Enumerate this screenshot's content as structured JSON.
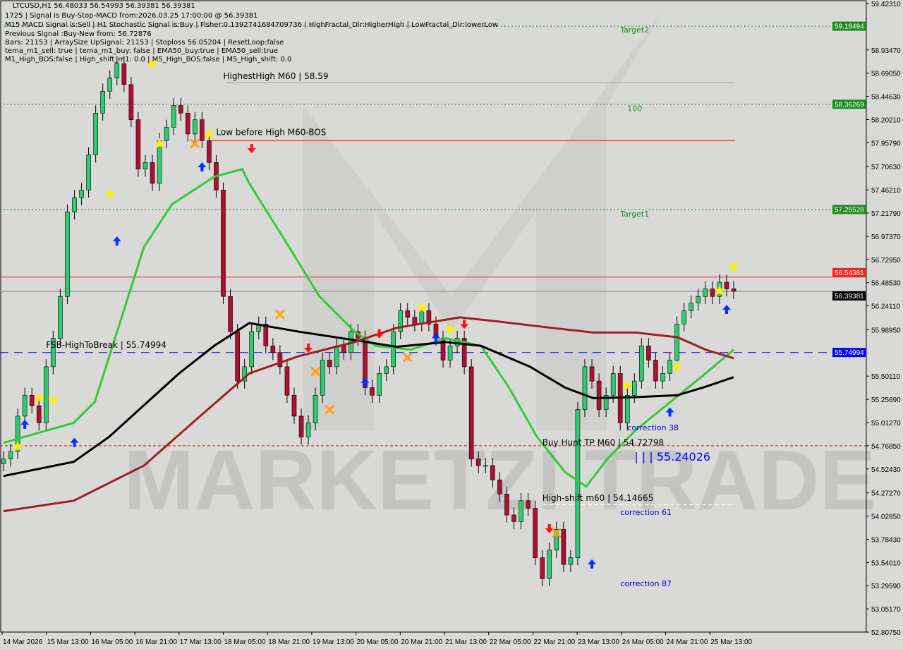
{
  "header": {
    "title": "LTCUSD,H1  56.48033 56.54993 56.39381 56.39381",
    "lines": [
      "1725 | Signal is Buy-Stop-MACD from:2026.03.25 17:00:00 @ 56.39381",
      "M15 MACD Signal is:Sell | H1 Stochastic Signal is:Buy | Fisher:0.1392741684709736 | HighFractal_Dir:HigherHigh | LowFractal_Dir:lowerLow",
      "Previous Signal :Buy-New from: 56.72876",
      "Bars: 21153 | ArraySize UpSignal: 21153 | Stoploss 56.05204 | ResetLoop:false",
      "tema_m1_sell: true | tema_m1_buy: false | EMA50_buy:true | EMA50_sell:true",
      "M1_High_BOS:false | High_shift_m1: 0.0 | M5_High_BOS:false | M5_High_shift: 0.0"
    ]
  },
  "watermark": "MARKETZI TRADE",
  "colors": {
    "bull": "#2ecc71",
    "bear": "#b01030",
    "ema_fast": "#33cc33",
    "ma_mid": "#000000",
    "ma_slow": "#a02020",
    "target": "#1e8c1e",
    "ask": "#ff2020",
    "bid": "#000000",
    "fsb": "#0000ff",
    "bg": "#d9d9d7"
  },
  "chart_data": {
    "type": "candlestick",
    "symbol": "LTCUSD",
    "timeframe": "H1",
    "ylim": [
      52.8075,
      59.4231
    ],
    "y_ticks": [
      "59.42310",
      "58.93470",
      "58.69050",
      "58.44630",
      "58.20210",
      "57.95790",
      "57.70630",
      "57.46210",
      "57.21790",
      "56.97370",
      "56.72950",
      "56.48530",
      "56.24110",
      "55.98950",
      "55.50110",
      "55.25690",
      "55.01270",
      "54.76850",
      "54.52430",
      "54.27270",
      "54.02850",
      "53.78430",
      "53.54010",
      "53.29590",
      "53.05170",
      "52.80750"
    ],
    "x_ticks": [
      "14 Mar 2026",
      "15 Mar 13:00",
      "16 Mar 05:00",
      "16 Mar 21:00",
      "17 Mar 13:00",
      "18 Mar 05:00",
      "18 Mar 21:00",
      "19 Mar 13:00",
      "20 Mar 05:00",
      "20 Mar 21:00",
      "21 Mar 13:00",
      "22 Mar 05:00",
      "22 Mar 21:00",
      "23 Mar 13:00",
      "24 Mar 05:00",
      "24 Mar 21:00",
      "25 Mar 13:00"
    ],
    "closes": [
      54.63,
      54.71,
      55.08,
      55.3,
      55.19,
      55.01,
      55.6,
      55.9,
      56.34,
      57.23,
      57.38,
      57.46,
      57.83,
      58.27,
      58.5,
      58.64,
      58.79,
      58.57,
      58.2,
      57.68,
      57.75,
      57.53,
      57.98,
      58.12,
      58.35,
      58.27,
      58.05,
      58.2,
      57.98,
      57.75,
      57.46,
      56.34,
      55.97,
      55.45,
      55.6,
      55.97,
      56.05,
      55.82,
      55.75,
      55.6,
      55.3,
      55.08,
      54.86,
      55.01,
      55.3,
      55.67,
      55.6,
      55.82,
      55.75,
      55.97,
      55.9,
      55.38,
      55.3,
      55.53,
      55.6,
      55.97,
      56.19,
      56.12,
      56.05,
      56.19,
      56.05,
      55.9,
      55.67,
      55.82,
      55.9,
      55.6,
      54.63,
      54.56,
      54.56,
      54.41,
      54.26,
      54.04,
      53.97,
      54.19,
      54.11,
      53.59,
      53.37,
      53.67,
      53.89,
      53.52,
      53.59,
      55.15,
      55.6,
      55.45,
      55.15,
      55.3,
      55.53,
      55.01,
      55.3,
      55.45,
      55.82,
      55.67,
      55.45,
      55.53,
      55.67,
      56.05,
      56.19,
      56.27,
      56.34,
      56.42,
      56.34,
      56.49,
      56.42,
      56.39381
    ],
    "series": [
      {
        "key": "ema_fast",
        "points": [
          [
            0,
            54.8
          ],
          [
            10,
            55.01
          ],
          [
            13,
            55.23
          ],
          [
            20,
            56.86
          ],
          [
            24,
            57.31
          ],
          [
            30,
            57.6
          ],
          [
            34,
            57.68
          ],
          [
            35,
            57.53
          ],
          [
            40,
            56.94
          ],
          [
            45,
            56.34
          ],
          [
            50,
            55.97
          ],
          [
            53,
            55.82
          ],
          [
            58,
            55.78
          ],
          [
            63,
            55.9
          ],
          [
            68,
            55.82
          ],
          [
            72,
            55.38
          ],
          [
            76,
            54.86
          ],
          [
            80,
            54.49
          ],
          [
            83,
            54.34
          ],
          [
            86,
            54.63
          ],
          [
            90,
            54.93
          ],
          [
            95,
            55.23
          ],
          [
            100,
            55.53
          ],
          [
            104,
            55.78
          ]
        ]
      },
      {
        "key": "ma_mid",
        "points": [
          [
            0,
            54.45
          ],
          [
            10,
            54.6
          ],
          [
            15,
            54.86
          ],
          [
            25,
            55.53
          ],
          [
            30,
            55.82
          ],
          [
            35,
            56.06
          ],
          [
            42,
            55.97
          ],
          [
            50,
            55.88
          ],
          [
            56,
            55.81
          ],
          [
            63,
            55.86
          ],
          [
            68,
            55.82
          ],
          [
            75,
            55.6
          ],
          [
            80,
            55.38
          ],
          [
            84,
            55.27
          ],
          [
            90,
            55.28
          ],
          [
            96,
            55.3
          ],
          [
            100,
            55.39
          ],
          [
            104,
            55.49
          ]
        ]
      },
      {
        "key": "ma_slow",
        "points": [
          [
            0,
            54.08
          ],
          [
            10,
            54.19
          ],
          [
            20,
            54.56
          ],
          [
            28,
            55.08
          ],
          [
            35,
            55.53
          ],
          [
            42,
            55.71
          ],
          [
            50,
            55.86
          ],
          [
            56,
            56.01
          ],
          [
            65,
            56.12
          ],
          [
            70,
            56.08
          ],
          [
            78,
            56.01
          ],
          [
            84,
            55.96
          ],
          [
            90,
            55.96
          ],
          [
            96,
            55.91
          ],
          [
            100,
            55.78
          ],
          [
            104,
            55.69
          ]
        ]
      }
    ],
    "levels": [
      {
        "price": 59.18494,
        "label": "59.18494",
        "style": "target"
      },
      {
        "price": 58.36269,
        "label": "58.36269",
        "style": "target"
      },
      {
        "price": 57.25528,
        "label": "57.25528",
        "style": "target"
      },
      {
        "price": 56.54381,
        "label": "56.54381",
        "style": "ask"
      },
      {
        "price": 56.39381,
        "label": "56.39381",
        "style": "bid"
      },
      {
        "price": 55.74994,
        "label": "55.74994",
        "style": "fsb"
      },
      {
        "price": 54.7685,
        "label": "",
        "style": "redDash"
      }
    ],
    "annotations": [
      {
        "text": "Target2",
        "color": "#1e8c1e",
        "i": 87,
        "price": 59.12
      },
      {
        "text": "100",
        "color": "#1e8c1e",
        "i": 88,
        "price": 58.29
      },
      {
        "text": "Target1",
        "color": "#1e8c1e",
        "i": 87,
        "price": 57.18
      },
      {
        "text": "HighestHigh    M60 | 58.59",
        "color": "#000000",
        "i": 31,
        "price": 58.63
      },
      {
        "text": "Low before High    M60-BOS",
        "color": "#000000",
        "i": 30,
        "price": 58.04
      },
      {
        "text": "FSB-HighToBreak | 55.74994",
        "color": "#000000",
        "i": 6,
        "price": 55.8
      },
      {
        "text": "Buy Hunt TP M60 | 54.72798",
        "color": "#000000",
        "i": 76,
        "price": 54.77
      },
      {
        "text": "correction 38",
        "color": "#0000cc",
        "i": 88,
        "price": 54.82
      },
      {
        "text": "| | | 55.24026",
        "color": "#0000ff",
        "i": 89,
        "price": 54.61,
        "big": true
      },
      {
        "text": "High-shift m60 | 54.14665",
        "color": "#000000",
        "i": 76,
        "price": 54.19
      },
      {
        "text": "correction 61",
        "color": "#0000cc",
        "i": 87,
        "price": 54.04
      },
      {
        "text": "correction 87",
        "color": "#0000cc",
        "i": 87,
        "price": 53.29
      }
    ],
    "markers": [
      {
        "type": "star",
        "i": 2,
        "price": 54.76
      },
      {
        "type": "star",
        "i": 5,
        "price": 55.27
      },
      {
        "type": "star",
        "i": 7,
        "price": 55.25
      },
      {
        "type": "star",
        "i": 15,
        "price": 57.42
      },
      {
        "type": "star",
        "i": 21,
        "price": 58.79
      },
      {
        "type": "star",
        "i": 22,
        "price": 57.95
      },
      {
        "type": "star",
        "i": 29,
        "price": 58.05
      },
      {
        "type": "star",
        "i": 59,
        "price": 56.22
      },
      {
        "type": "star",
        "i": 63,
        "price": 56.0
      },
      {
        "type": "star",
        "i": 88,
        "price": 55.4
      },
      {
        "type": "star",
        "i": 95,
        "price": 55.6
      },
      {
        "type": "star",
        "i": 101,
        "price": 56.4
      },
      {
        "type": "star",
        "i": 103,
        "price": 56.65
      },
      {
        "type": "up",
        "i": 3,
        "price": 54.99
      },
      {
        "type": "up",
        "i": 10,
        "price": 54.8
      },
      {
        "type": "up",
        "i": 16,
        "price": 56.92
      },
      {
        "type": "up",
        "i": 28,
        "price": 57.7
      },
      {
        "type": "up",
        "i": 51,
        "price": 55.43
      },
      {
        "type": "up",
        "i": 61,
        "price": 55.9
      },
      {
        "type": "up",
        "i": 83,
        "price": 53.52
      },
      {
        "type": "up",
        "i": 94,
        "price": 55.12
      },
      {
        "type": "up",
        "i": 102,
        "price": 56.2
      },
      {
        "type": "down",
        "i": 35,
        "price": 57.9
      },
      {
        "type": "down",
        "i": 43,
        "price": 55.8
      },
      {
        "type": "down",
        "i": 53,
        "price": 55.95
      },
      {
        "type": "down",
        "i": 65,
        "price": 56.05
      },
      {
        "type": "down",
        "i": 77,
        "price": 53.9
      },
      {
        "type": "cross",
        "i": 27,
        "price": 57.95
      },
      {
        "type": "cross",
        "i": 39,
        "price": 56.15
      },
      {
        "type": "cross",
        "i": 44,
        "price": 55.55
      },
      {
        "type": "cross",
        "i": 46,
        "price": 55.15
      },
      {
        "type": "cross",
        "i": 57,
        "price": 55.7
      },
      {
        "type": "cross",
        "i": 78,
        "price": 53.85
      }
    ]
  }
}
